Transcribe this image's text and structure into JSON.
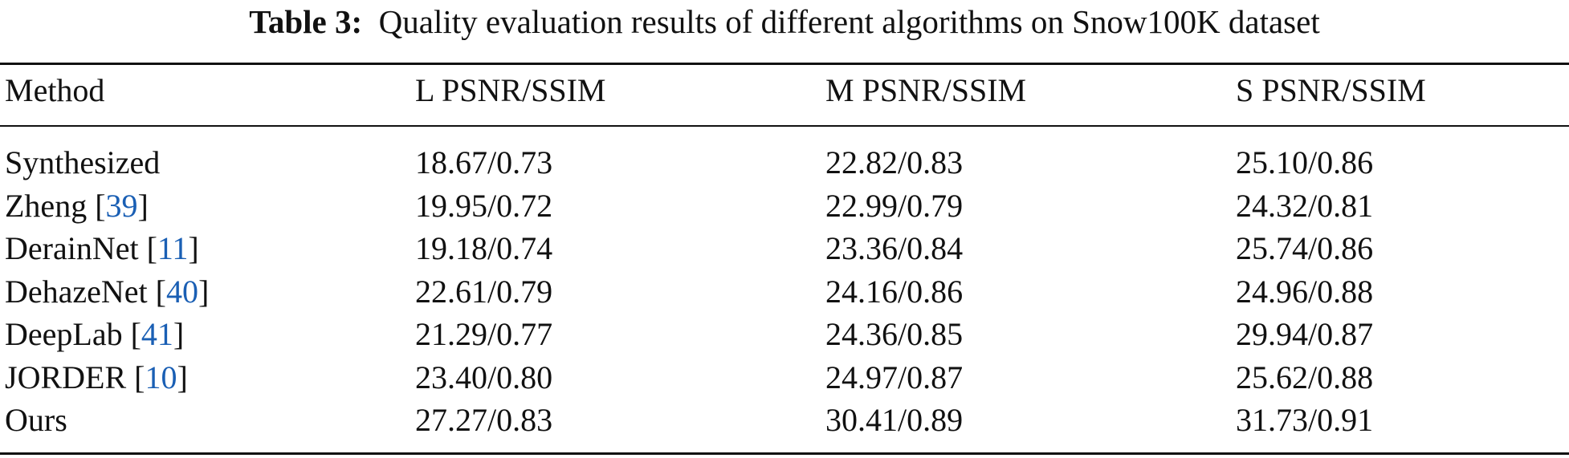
{
  "caption": {
    "label": "Table 3:",
    "text": "Quality evaluation results of different algorithms on Snow100K dataset"
  },
  "table": {
    "header": [
      "Method",
      "L PSNR/SSIM",
      "M PSNR/SSIM",
      "S PSNR/SSIM"
    ],
    "rows": [
      {
        "method": [
          "Synthesized"
        ],
        "values": [
          "18.67/0.73",
          "22.82/0.83",
          "25.10/0.86"
        ]
      },
      {
        "method": [
          "Zheng [",
          "39",
          "]"
        ],
        "values": [
          "19.95/0.72",
          "22.99/0.79",
          "24.32/0.81"
        ]
      },
      {
        "method": [
          "DerainNet [",
          "11",
          "]"
        ],
        "values": [
          "19.18/0.74",
          "23.36/0.84",
          "25.74/0.86"
        ]
      },
      {
        "method": [
          "DehazeNet [",
          "40",
          "]"
        ],
        "values": [
          "22.61/0.79",
          "24.16/0.86",
          "24.96/0.88"
        ]
      },
      {
        "method": [
          "DeepLab [",
          "41",
          "]"
        ],
        "values": [
          "21.29/0.77",
          "24.36/0.85",
          "29.94/0.87"
        ]
      },
      {
        "method": [
          "JORDER [",
          "10",
          "]"
        ],
        "values": [
          "23.40/0.80",
          "24.97/0.87",
          "25.62/0.88"
        ]
      },
      {
        "method": [
          "Ours"
        ],
        "values": [
          "27.27/0.83",
          "30.41/0.89",
          "31.73/0.91"
        ]
      }
    ]
  }
}
